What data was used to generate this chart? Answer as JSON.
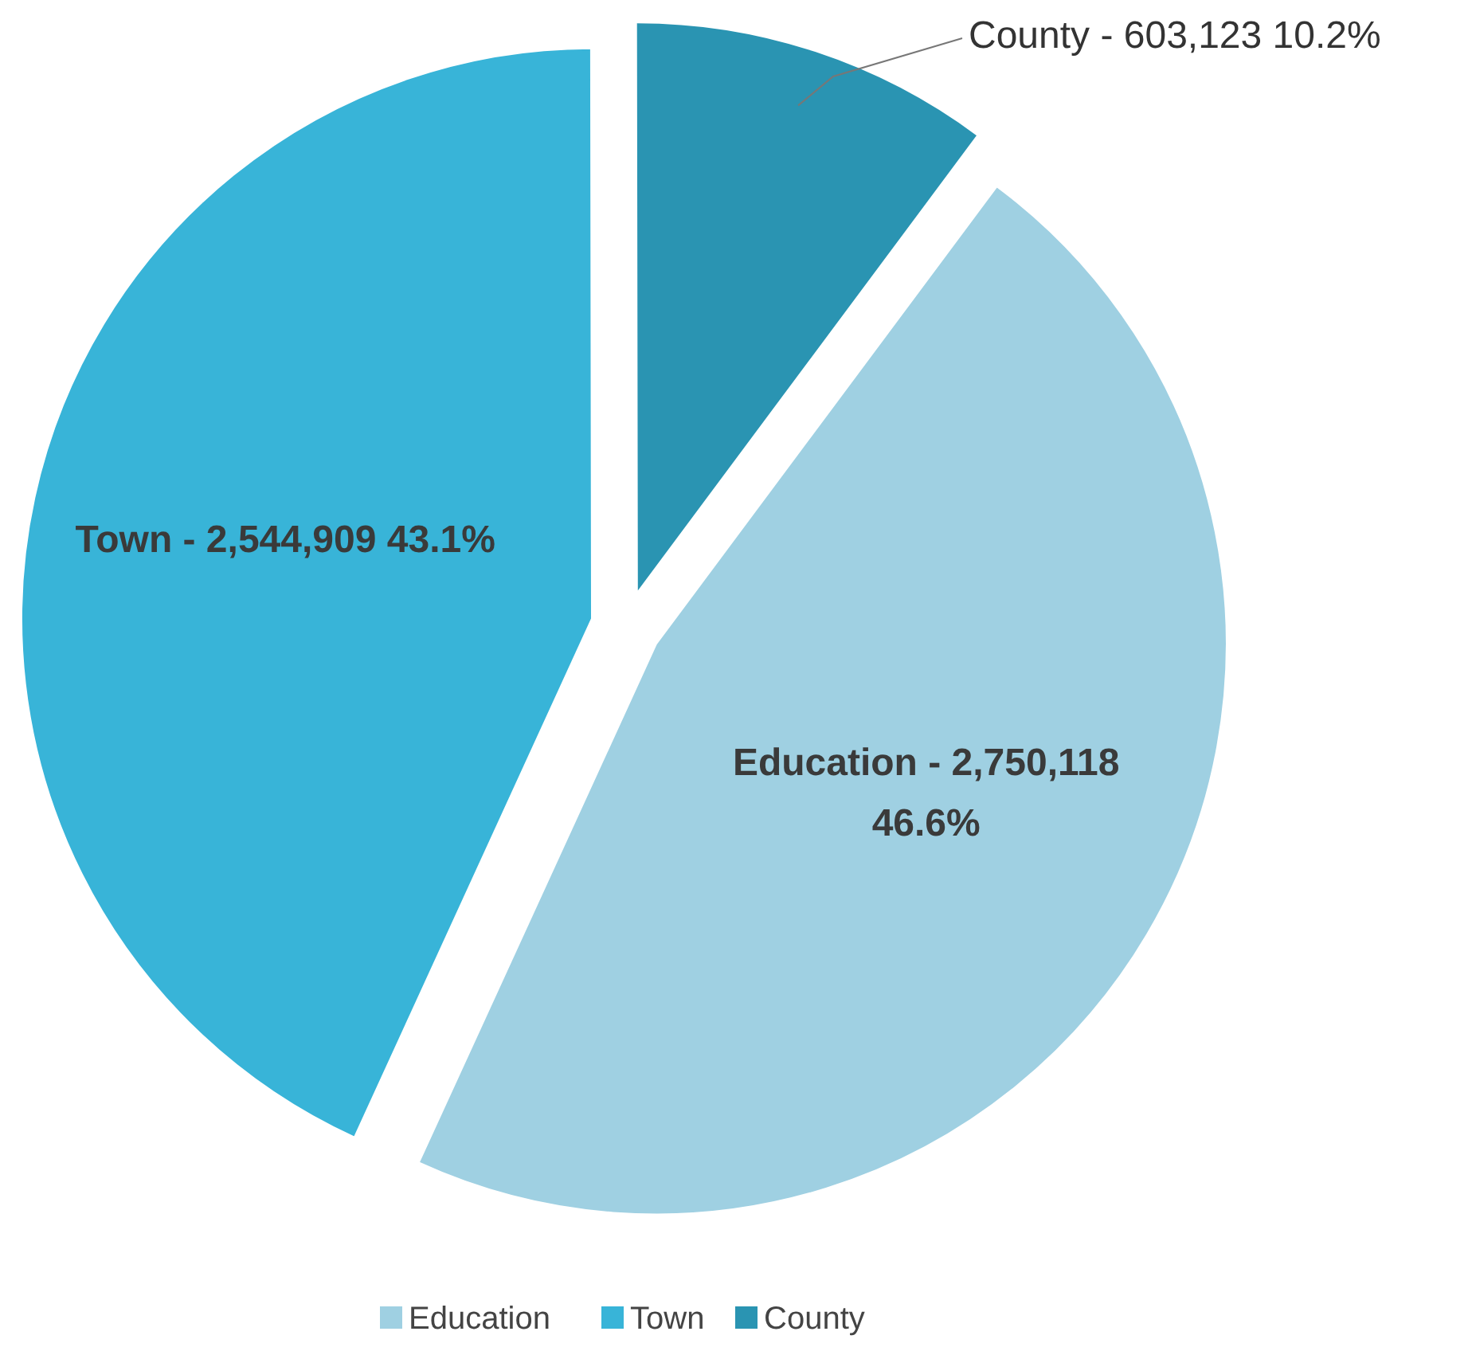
{
  "chart_data": {
    "type": "pie",
    "categories": [
      "Education",
      "Town",
      "County"
    ],
    "values": [
      46.6,
      43.1,
      10.2
    ],
    "colors": [
      "#9fd0e2",
      "#38b4d8",
      "#2a94b2"
    ],
    "value_labels": [
      "Education - 2,750,118  46.6%",
      "Town - 2,544,909  43.1%",
      "County - 603,123  10.2%"
    ],
    "legend": "bottom"
  }
}
